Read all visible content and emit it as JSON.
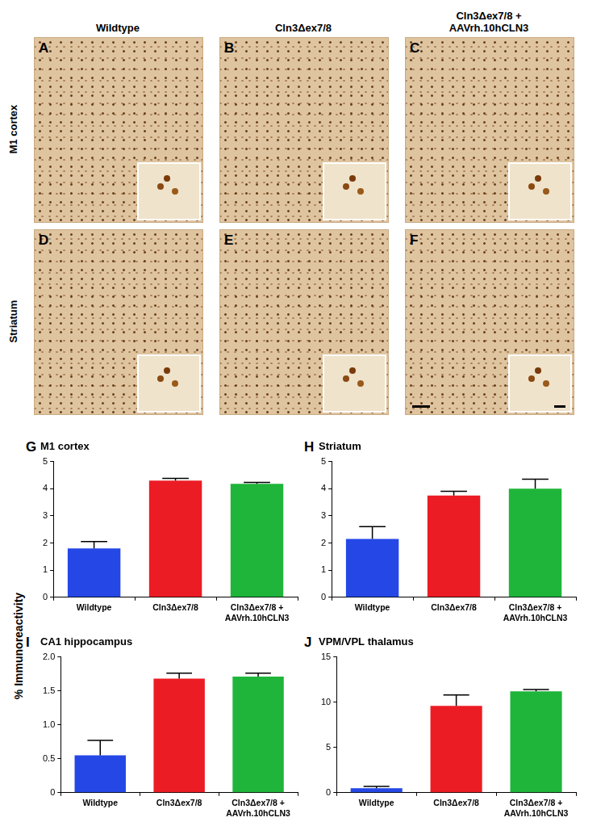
{
  "image_panels": {
    "columns": [
      "Wildtype",
      "Cln3Δex7/8",
      "Cln3Δex7/8 + AAVrh.10hCLN3"
    ],
    "rows": [
      "M1 cortex",
      "Striatum"
    ],
    "letters": [
      [
        "A",
        "B",
        "C"
      ],
      [
        "D",
        "E",
        "F"
      ]
    ]
  },
  "shared_y_label": "% Immunoreactivity",
  "chart_data": [
    {
      "type": "bar",
      "letter": "G",
      "title": "M1 cortex",
      "categories": [
        "Wildtype",
        "Cln3Δex7/8",
        "Cln3Δex7/8 + AAVrh.10hCLN3"
      ],
      "values": [
        1.8,
        4.3,
        4.18
      ],
      "errors": [
        0.25,
        0.08,
        0.05
      ],
      "colors": [
        "#2447e6",
        "#ec1c24",
        "#1fb53a"
      ],
      "ylim": [
        0,
        5
      ],
      "yticks": [
        0,
        1,
        2,
        3,
        4,
        5
      ],
      "grid": false
    },
    {
      "type": "bar",
      "letter": "H",
      "title": "Striatum",
      "categories": [
        "Wildtype",
        "Cln3Δex7/8",
        "Cln3Δex7/8 + AAVrh.10hCLN3"
      ],
      "values": [
        2.15,
        3.75,
        4.0
      ],
      "errors": [
        0.45,
        0.15,
        0.35
      ],
      "colors": [
        "#2447e6",
        "#ec1c24",
        "#1fb53a"
      ],
      "ylim": [
        0,
        5
      ],
      "yticks": [
        0,
        1,
        2,
        3,
        4,
        5
      ],
      "grid": false
    },
    {
      "type": "bar",
      "letter": "I",
      "title": "CA1 hippocampus",
      "categories": [
        "Wildtype",
        "Cln3Δex7/8",
        "Cln3Δex7/8 + AAVrh.10hCLN3"
      ],
      "values": [
        0.55,
        1.68,
        1.71
      ],
      "errors": [
        0.22,
        0.08,
        0.05
      ],
      "colors": [
        "#2447e6",
        "#ec1c24",
        "#1fb53a"
      ],
      "ylim": [
        0,
        2
      ],
      "yticks": [
        0,
        0.5,
        {
          "value": 1,
          "label": "1.0"
        },
        1.5,
        {
          "value": 2,
          "label": "2.0"
        }
      ],
      "grid": false
    },
    {
      "type": "bar",
      "letter": "J",
      "title": "VPM/VPL thalamus",
      "categories": [
        "Wildtype",
        "Cln3Δex7/8",
        "Cln3Δex7/8 + AAVrh.10hCLN3"
      ],
      "values": [
        0.5,
        9.6,
        11.2
      ],
      "errors": [
        0.2,
        1.2,
        0.2
      ],
      "colors": [
        "#2447e6",
        "#ec1c24",
        "#1fb53a"
      ],
      "ylim": [
        0,
        15
      ],
      "yticks": [
        0,
        5,
        10,
        15
      ],
      "grid": false
    }
  ]
}
